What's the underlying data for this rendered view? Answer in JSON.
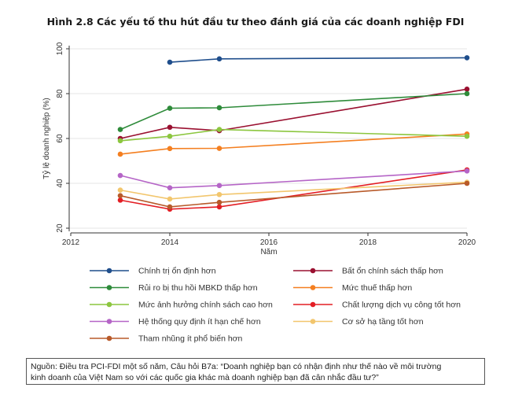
{
  "title": "Hình 2.8 Các yếu tố thu hút đầu tư theo đánh giá của các doanh nghiệp FDI",
  "source": {
    "line1": "Nguồn: Điều tra PCI-FDI một số năm, Câu hỏi B7a: “Doanh nghiệp bạn có nhận định như thế nào về môi trường",
    "line2": "kinh doanh của Việt Nam so với các quốc gia khác mà doanh nghiệp bạn đã cân nhắc đầu tư?”"
  },
  "chart_data": {
    "type": "line",
    "xlabel": "Năm",
    "ylabel": "Tỷ lệ doanh nghiệp (%)",
    "xlim": [
      2012,
      2020
    ],
    "ylim": [
      20,
      100
    ],
    "xticks": [
      "2012",
      "2014",
      "2016",
      "2018",
      "2020"
    ],
    "yticks": [
      "20",
      "40",
      "60",
      "80",
      "100"
    ],
    "grid": "horizontal",
    "legend_position": "bottom",
    "series": [
      {
        "name": "Chính trị ổn định hơn",
        "color": "#1f4e8c",
        "x": [
          2014,
          2015,
          2020
        ],
        "y": [
          94.0,
          95.5,
          96.0
        ]
      },
      {
        "name": "Bất ổn chính sách thấp hơn",
        "color": "#9a1030",
        "x": [
          2013,
          2014,
          2015,
          2020
        ],
        "y": [
          60.0,
          65.0,
          63.5,
          82.0
        ]
      },
      {
        "name": "Rủi ro bị thu hồi MBKD thấp hơn",
        "color": "#2e8b3a",
        "x": [
          2013,
          2014,
          2015,
          2020
        ],
        "y": [
          64.0,
          73.5,
          73.7,
          80.0
        ]
      },
      {
        "name": "Mức thuế thấp hơn",
        "color": "#f47f20",
        "x": [
          2013,
          2014,
          2015,
          2020
        ],
        "y": [
          53.0,
          55.5,
          55.6,
          62.0
        ]
      },
      {
        "name": "Mức ảnh hưởng chính sách cao hơn",
        "color": "#8cc63f",
        "x": [
          2013,
          2014,
          2015,
          2020
        ],
        "y": [
          59.0,
          61.0,
          64.0,
          61.0
        ]
      },
      {
        "name": "Chất lượng dịch vụ công tốt hơn",
        "color": "#e31e24",
        "x": [
          2013,
          2014,
          2015,
          2020
        ],
        "y": [
          32.5,
          28.5,
          29.5,
          46.0
        ]
      },
      {
        "name": "Hệ thống quy định ít hạn chế hơn",
        "color": "#b565c7",
        "x": [
          2013,
          2014,
          2015,
          2020
        ],
        "y": [
          43.5,
          38.0,
          39.0,
          45.5
        ]
      },
      {
        "name": "Cơ sở hạ tầng tốt hơn",
        "color": "#f2c66d",
        "x": [
          2013,
          2014,
          2015,
          2020
        ],
        "y": [
          37.0,
          33.0,
          35.0,
          40.5
        ]
      },
      {
        "name": "Tham nhũng ít phổ biến hơn",
        "color": "#b85a2a",
        "x": [
          2013,
          2014,
          2015,
          2020
        ],
        "y": [
          34.5,
          29.5,
          31.5,
          40.0
        ]
      }
    ]
  }
}
